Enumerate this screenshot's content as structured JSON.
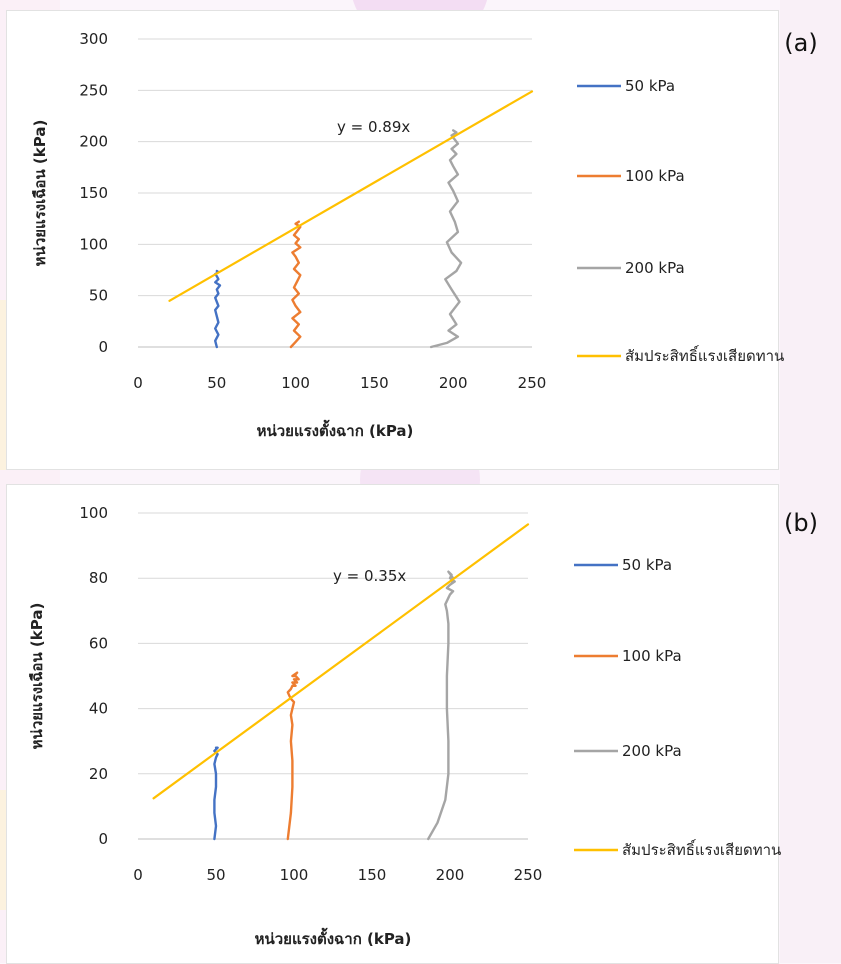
{
  "chart_data": [
    {
      "type": "line",
      "panel_label": "(a)",
      "xlabel": "หน่วยแรงตั้งฉาก (kPa)",
      "ylabel": "หน่วยแรงเฉือน (kPa)",
      "xlim": [
        0,
        250
      ],
      "ylim": [
        0,
        300
      ],
      "xticks": [
        "0",
        "50",
        "100",
        "150",
        "200",
        "250"
      ],
      "yticks": [
        "0",
        "50",
        "100",
        "150",
        "200",
        "250",
        "300"
      ],
      "grid": "horizontal",
      "legend_position": "right",
      "trendline_equation": "y = 0.89x",
      "series": [
        {
          "name": "50 kPa",
          "color": "#4472c4",
          "x": [
            50,
            49,
            51,
            49,
            51,
            50,
            49,
            51,
            50,
            49,
            51,
            50,
            52,
            49,
            51,
            50,
            49,
            51,
            50
          ],
          "y": [
            0,
            6,
            12,
            18,
            24,
            30,
            36,
            40,
            44,
            48,
            52,
            56,
            60,
            63,
            66,
            69,
            71,
            73,
            74
          ]
        },
        {
          "name": "100 kPa",
          "color": "#ed7d31",
          "x": [
            97,
            100,
            103,
            99,
            102,
            98,
            103,
            100,
            98,
            102,
            99,
            101,
            103,
            99,
            102,
            100,
            98,
            103,
            100,
            102,
            99,
            101,
            103,
            100,
            102
          ],
          "y": [
            0,
            5,
            10,
            16,
            22,
            28,
            34,
            40,
            46,
            52,
            58,
            64,
            70,
            76,
            82,
            88,
            92,
            97,
            101,
            105,
            109,
            113,
            117,
            120,
            122
          ]
        },
        {
          "name": "200 kPa",
          "color": "#a5a5a5",
          "x": [
            186,
            196,
            203,
            197,
            202,
            198,
            204,
            199,
            195,
            202,
            205,
            199,
            196,
            203,
            201,
            198,
            203,
            200,
            197,
            203,
            200,
            198,
            202,
            199,
            203,
            201,
            199,
            202,
            200
          ],
          "y": [
            0,
            4,
            10,
            16,
            22,
            32,
            44,
            56,
            66,
            74,
            82,
            92,
            102,
            112,
            122,
            132,
            142,
            152,
            160,
            168,
            176,
            182,
            188,
            193,
            198,
            202,
            206,
            209,
            211
          ]
        },
        {
          "name": "สัมประสิทธิ์แรงเสียดทาน",
          "color": "#ffc000",
          "x": [
            20,
            250
          ],
          "y": [
            45,
            249
          ]
        }
      ]
    },
    {
      "type": "line",
      "panel_label": "(b)",
      "xlabel": "หน่วยแรงตั้งฉาก (kPa)",
      "ylabel": "หน่วยแรงเฉือน (kPa)",
      "xlim": [
        0,
        250
      ],
      "ylim": [
        0,
        100
      ],
      "xticks": [
        "0",
        "50",
        "100",
        "150",
        "200",
        "250"
      ],
      "yticks": [
        "0",
        "20",
        "40",
        "60",
        "80",
        "100"
      ],
      "grid": "horizontal",
      "legend_position": "right",
      "trendline_equation": "y = 0.35x",
      "series": [
        {
          "name": "50 kPa",
          "color": "#4472c4",
          "x": [
            49,
            50,
            49,
            49,
            50,
            50,
            49,
            50,
            51,
            49,
            51,
            50
          ],
          "y": [
            0,
            4,
            8,
            12,
            16,
            20,
            23,
            25,
            26,
            27,
            28,
            28
          ]
        },
        {
          "name": "100 kPa",
          "color": "#ed7d31",
          "x": [
            96,
            98,
            99,
            99,
            98,
            99,
            98,
            99,
            100,
            98,
            97,
            96,
            98,
            99,
            101,
            99,
            102,
            100,
            103,
            101,
            99,
            102,
            100
          ],
          "y": [
            0,
            8,
            16,
            24,
            30,
            35,
            38,
            40,
            42,
            43,
            44,
            45,
            46,
            47,
            47,
            48,
            48,
            49,
            49,
            50,
            50,
            51,
            50
          ]
        },
        {
          "name": "200 kPa",
          "color": "#a5a5a5",
          "x": [
            186,
            192,
            197,
            199,
            199,
            198,
            198,
            199,
            199,
            198,
            197,
            199,
            200,
            202,
            198,
            200,
            203,
            200,
            201,
            199,
            202,
            201
          ],
          "y": [
            0,
            5,
            12,
            20,
            30,
            40,
            50,
            60,
            66,
            70,
            72,
            74,
            75,
            76,
            77,
            78,
            79,
            80,
            81,
            82,
            80,
            79
          ]
        },
        {
          "name": "สัมประสิทธิ์แรงเสียดทาน",
          "color": "#ffc000",
          "x": [
            10,
            250
          ],
          "y": [
            12.5,
            96.5
          ]
        }
      ]
    }
  ]
}
